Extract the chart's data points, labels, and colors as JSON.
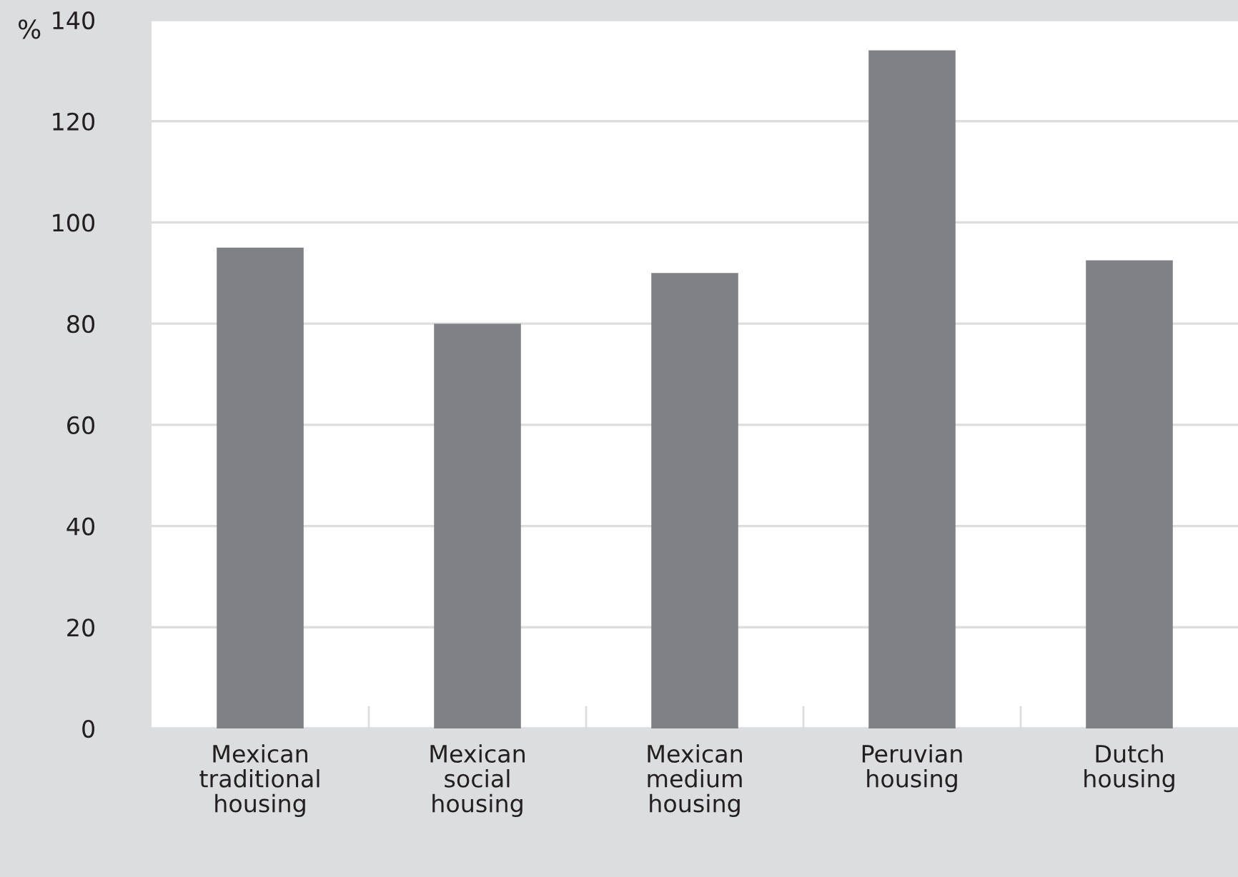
{
  "chart_data": {
    "type": "bar",
    "ylabel": "%",
    "categories": [
      "Mexican\ntraditional\nhousing",
      "Mexican\nsocial\nhousing",
      "Mexican\nmedium\nhousing",
      "Peruvian\nhousing",
      "Dutch\nhousing"
    ],
    "values": [
      95,
      80,
      90,
      134,
      92.5
    ],
    "color": "#808184",
    "ylim": [
      0,
      140
    ],
    "yticks": [
      0,
      20,
      40,
      60,
      80,
      100,
      120,
      140
    ],
    "grid": "y"
  }
}
